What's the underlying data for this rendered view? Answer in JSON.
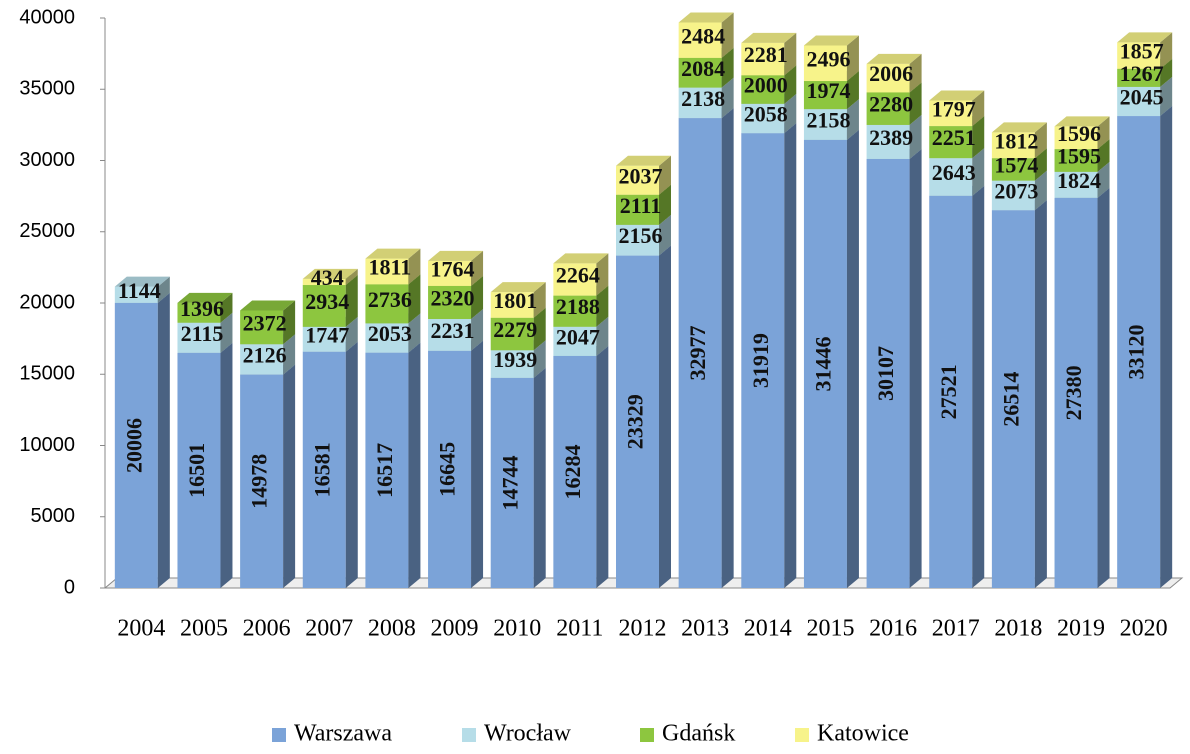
{
  "chart_data": {
    "type": "bar3d_stacked",
    "categories": [
      "2004",
      "2005",
      "2006",
      "2007",
      "2008",
      "2009",
      "2010",
      "2011",
      "2012",
      "2013",
      "2014",
      "2015",
      "2016",
      "2017",
      "2018",
      "2019",
      "2020"
    ],
    "series": [
      {
        "name": "Warszawa",
        "color": "#7ba3d8",
        "values": [
          20006,
          16501,
          14978,
          16581,
          16517,
          16645,
          14744,
          16284,
          23329,
          32977,
          31919,
          31446,
          30107,
          27521,
          26514,
          27380,
          33120
        ]
      },
      {
        "name": "Wrocław",
        "color": "#b6dde8",
        "values": [
          1144,
          2115,
          2126,
          1747,
          2053,
          2231,
          1939,
          2047,
          2156,
          2138,
          2058,
          2158,
          2389,
          2643,
          2073,
          1824,
          2045
        ]
      },
      {
        "name": "Gdańsk",
        "color": "#8dc63f",
        "values": [
          null,
          1396,
          2372,
          2934,
          2736,
          2320,
          2279,
          2188,
          2111,
          2084,
          2000,
          1974,
          2280,
          2251,
          1574,
          1595,
          1267
        ]
      },
      {
        "name": "Katowice",
        "color": "#f7f38a",
        "values": [
          null,
          null,
          null,
          434,
          1811,
          1764,
          1801,
          2264,
          2037,
          2484,
          2281,
          2496,
          2006,
          1797,
          1812,
          1596,
          1857
        ]
      }
    ],
    "ylim": [
      0,
      40000
    ],
    "yticks": [
      0,
      5000,
      10000,
      15000,
      20000,
      25000,
      30000,
      35000,
      40000
    ]
  }
}
